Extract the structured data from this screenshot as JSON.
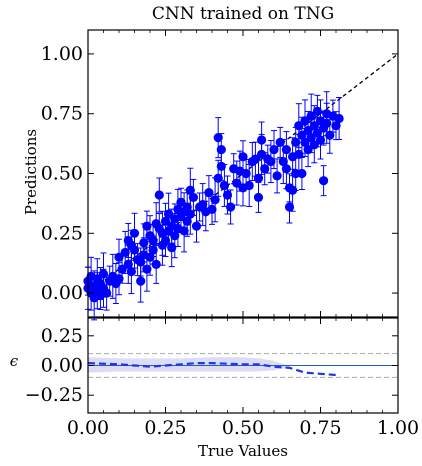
{
  "chart_data": [
    {
      "type": "scatter",
      "title": "CNN trained on TNG",
      "xlabel": "",
      "ylabel": "Predictions",
      "xlim": [
        0,
        1
      ],
      "ylim": [
        -0.1,
        1.1
      ],
      "xticks": [
        "0.00",
        "0.25",
        "0.50",
        "0.75",
        "1.00"
      ],
      "yticks": [
        "0.00",
        "0.25",
        "0.50",
        "0.75",
        "1.00"
      ],
      "ytick_values": [
        0,
        0.25,
        0.5,
        0.75,
        1.0
      ],
      "xtick_values": [
        0,
        0.25,
        0.5,
        0.75,
        1.0
      ],
      "marker_color": "#0000ff",
      "reference_line": {
        "style": "dashed",
        "color": "#000000",
        "x": [
          0,
          1
        ],
        "y": [
          0,
          1
        ]
      },
      "points": [
        [
          0.0,
          0.05
        ],
        [
          0.0,
          0.02
        ],
        [
          0.01,
          0.07
        ],
        [
          0.01,
          0.0
        ],
        [
          0.02,
          0.03
        ],
        [
          0.02,
          -0.02
        ],
        [
          0.03,
          0.06
        ],
        [
          0.03,
          0.01
        ],
        [
          0.04,
          0.04
        ],
        [
          0.04,
          -0.01
        ],
        [
          0.05,
          0.08
        ],
        [
          0.05,
          0.02
        ],
        [
          0.06,
          0.0
        ],
        [
          0.07,
          0.05
        ],
        [
          0.08,
          0.07
        ],
        [
          0.09,
          0.04
        ],
        [
          0.1,
          0.15
        ],
        [
          0.1,
          0.06
        ],
        [
          0.11,
          0.1
        ],
        [
          0.12,
          0.17
        ],
        [
          0.13,
          0.12
        ],
        [
          0.13,
          0.22
        ],
        [
          0.14,
          0.2
        ],
        [
          0.14,
          0.09
        ],
        [
          0.15,
          0.25
        ],
        [
          0.15,
          0.18
        ],
        [
          0.16,
          0.14
        ],
        [
          0.17,
          0.13
        ],
        [
          0.17,
          0.05
        ],
        [
          0.18,
          0.21
        ],
        [
          0.18,
          0.16
        ],
        [
          0.19,
          0.28
        ],
        [
          0.19,
          0.1
        ],
        [
          0.2,
          0.24
        ],
        [
          0.2,
          0.15
        ],
        [
          0.21,
          0.22
        ],
        [
          0.21,
          0.18
        ],
        [
          0.22,
          0.29
        ],
        [
          0.22,
          0.12
        ],
        [
          0.23,
          0.41
        ],
        [
          0.23,
          0.27
        ],
        [
          0.24,
          0.25
        ],
        [
          0.24,
          0.2
        ],
        [
          0.25,
          0.3
        ],
        [
          0.25,
          0.22
        ],
        [
          0.26,
          0.26
        ],
        [
          0.26,
          0.33
        ],
        [
          0.27,
          0.19
        ],
        [
          0.27,
          0.28
        ],
        [
          0.28,
          0.31
        ],
        [
          0.28,
          0.24
        ],
        [
          0.29,
          0.35
        ],
        [
          0.29,
          0.27
        ],
        [
          0.3,
          0.32
        ],
        [
          0.3,
          0.38
        ],
        [
          0.31,
          0.26
        ],
        [
          0.31,
          0.34
        ],
        [
          0.32,
          0.36
        ],
        [
          0.32,
          0.3
        ],
        [
          0.33,
          0.43
        ],
        [
          0.33,
          0.33
        ],
        [
          0.34,
          0.4
        ],
        [
          0.35,
          0.28
        ],
        [
          0.36,
          0.36
        ],
        [
          0.37,
          0.37
        ],
        [
          0.38,
          0.34
        ],
        [
          0.39,
          0.42
        ],
        [
          0.4,
          0.35
        ],
        [
          0.41,
          0.39
        ],
        [
          0.42,
          0.65
        ],
        [
          0.42,
          0.48
        ],
        [
          0.43,
          0.6
        ],
        [
          0.43,
          0.53
        ],
        [
          0.44,
          0.45
        ],
        [
          0.45,
          0.41
        ],
        [
          0.46,
          0.36
        ],
        [
          0.47,
          0.52
        ],
        [
          0.48,
          0.46
        ],
        [
          0.49,
          0.51
        ],
        [
          0.5,
          0.44
        ],
        [
          0.5,
          0.57
        ],
        [
          0.51,
          0.5
        ],
        [
          0.52,
          0.45
        ],
        [
          0.53,
          0.55
        ],
        [
          0.54,
          0.56
        ],
        [
          0.55,
          0.4
        ],
        [
          0.55,
          0.48
        ],
        [
          0.56,
          0.58
        ],
        [
          0.56,
          0.64
        ],
        [
          0.57,
          0.52
        ],
        [
          0.58,
          0.56
        ],
        [
          0.59,
          0.55
        ],
        [
          0.6,
          0.6
        ],
        [
          0.61,
          0.49
        ],
        [
          0.62,
          0.63
        ],
        [
          0.63,
          0.55
        ],
        [
          0.64,
          0.52
        ],
        [
          0.64,
          0.6
        ],
        [
          0.65,
          0.36
        ],
        [
          0.65,
          0.44
        ],
        [
          0.66,
          0.43
        ],
        [
          0.66,
          0.57
        ],
        [
          0.67,
          0.5
        ],
        [
          0.67,
          0.63
        ],
        [
          0.68,
          0.7
        ],
        [
          0.68,
          0.58
        ],
        [
          0.69,
          0.66
        ],
        [
          0.69,
          0.5
        ],
        [
          0.7,
          0.63
        ],
        [
          0.7,
          0.72
        ],
        [
          0.71,
          0.68
        ],
        [
          0.71,
          0.6
        ],
        [
          0.72,
          0.65
        ],
        [
          0.72,
          0.74
        ],
        [
          0.73,
          0.7
        ],
        [
          0.73,
          0.62
        ],
        [
          0.74,
          0.76
        ],
        [
          0.74,
          0.67
        ],
        [
          0.75,
          0.72
        ],
        [
          0.75,
          0.64
        ],
        [
          0.76,
          0.69
        ],
        [
          0.76,
          0.47
        ],
        [
          0.77,
          0.75
        ],
        [
          0.77,
          0.71
        ],
        [
          0.78,
          0.66
        ],
        [
          0.79,
          0.74
        ],
        [
          0.8,
          0.7
        ],
        [
          0.81,
          0.73
        ]
      ]
    },
    {
      "type": "line",
      "xlabel": "True Values",
      "ylabel": "ϵ",
      "xlim": [
        0,
        1
      ],
      "ylim": [
        -0.4,
        0.4
      ],
      "xticks": [
        "0.00",
        "0.25",
        "0.50",
        "0.75",
        "1.00"
      ],
      "xtick_values": [
        0,
        0.25,
        0.5,
        0.75,
        1.0
      ],
      "yticks": [
        "−0.25",
        "0.00",
        "0.25"
      ],
      "ytick_values": [
        -0.25,
        0,
        0.25
      ],
      "reference_lines": [
        {
          "y": 0.1,
          "style": "dashed",
          "color": "#a9a9a9"
        },
        {
          "y": -0.1,
          "style": "dashed",
          "color": "#a9a9a9"
        },
        {
          "y": 0.0,
          "style": "solid",
          "color": "#1f5fbf"
        }
      ],
      "series": [
        {
          "style": "dashed",
          "color": "#2233ee",
          "x": [
            0.0,
            0.05,
            0.1,
            0.15,
            0.2,
            0.25,
            0.3,
            0.35,
            0.4,
            0.45,
            0.5,
            0.55,
            0.6,
            0.65,
            0.7,
            0.75,
            0.8
          ],
          "y": [
            0.02,
            0.015,
            0.01,
            0.0,
            -0.01,
            0.0,
            0.01,
            0.02,
            0.02,
            0.015,
            0.01,
            0.01,
            -0.01,
            -0.02,
            -0.06,
            -0.07,
            -0.08
          ]
        }
      ],
      "band": {
        "color": "#dcdcf4",
        "x": [
          0.0,
          0.1,
          0.2,
          0.3,
          0.4,
          0.5,
          0.55,
          0.6,
          0.62,
          0.65
        ],
        "upper": [
          0.07,
          0.06,
          0.06,
          0.06,
          0.07,
          0.07,
          0.06,
          0.04,
          0.02,
          0.0
        ],
        "lower": [
          -0.06,
          -0.05,
          -0.05,
          -0.05,
          -0.05,
          -0.05,
          -0.05,
          -0.04,
          -0.03,
          -0.02
        ]
      }
    }
  ]
}
